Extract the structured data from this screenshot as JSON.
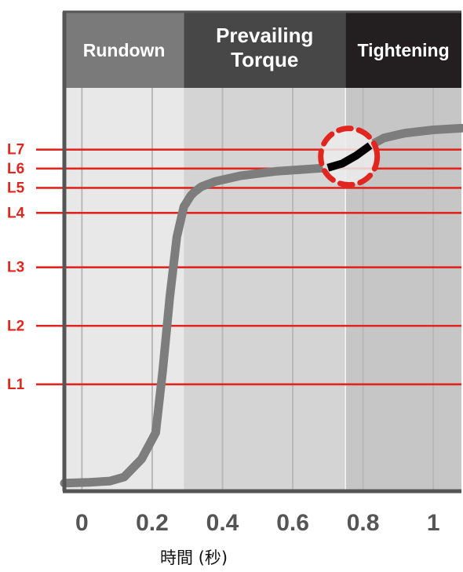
{
  "chart_data": {
    "type": "line",
    "title": "",
    "xlabel": "時間 (秒)",
    "ylabel": "",
    "xlim": [
      -0.05,
      1.08
    ],
    "ylim": [
      0,
      1
    ],
    "x_ticks": [
      {
        "value": 0,
        "label": "0"
      },
      {
        "value": 0.2,
        "label": "0.2"
      },
      {
        "value": 0.4,
        "label": "0.4"
      },
      {
        "value": 0.6,
        "label": "0.6"
      },
      {
        "value": 0.8,
        "label": "0.8"
      },
      {
        "value": 1,
        "label": "1"
      }
    ],
    "phases": [
      {
        "label": "Rundown",
        "start": -0.05,
        "end": 0.29,
        "header_color": "#7a7a7a",
        "band_color": "#e8e8e8"
      },
      {
        "label": "Prevailing Torque",
        "start": 0.29,
        "end": 0.75,
        "header_color": "#474747",
        "band_color": "#d4d4d4"
      },
      {
        "label": "Tightening",
        "start": 0.75,
        "end": 1.08,
        "header_color": "#231f20",
        "band_color": "#c6c6c6"
      }
    ],
    "levels": [
      {
        "label": "L1",
        "value": 0.265
      },
      {
        "label": "L2",
        "value": 0.41
      },
      {
        "label": "L3",
        "value": 0.555
      },
      {
        "label": "L4",
        "value": 0.69
      },
      {
        "label": "L5",
        "value": 0.752
      },
      {
        "label": "L6",
        "value": 0.8
      },
      {
        "label": "L7",
        "value": 0.847
      }
    ],
    "series": [
      {
        "color": "#7d7d7d",
        "x": [
          -0.05,
          0.02,
          0.08,
          0.12,
          0.17,
          0.21,
          0.23,
          0.25,
          0.27,
          0.29,
          0.31,
          0.32,
          0.34,
          0.38,
          0.45,
          0.55,
          0.65,
          0.7,
          0.74,
          0.78,
          0.82,
          0.86,
          0.92,
          1.0,
          1.08
        ],
        "y": [
          0.02,
          0.022,
          0.025,
          0.035,
          0.08,
          0.145,
          0.3,
          0.48,
          0.63,
          0.705,
          0.733,
          0.742,
          0.755,
          0.768,
          0.782,
          0.793,
          0.799,
          0.802,
          0.812,
          0.832,
          0.857,
          0.876,
          0.888,
          0.896,
          0.9
        ]
      }
    ],
    "highlight": {
      "color": "#000000",
      "outline_color": "#e0261f",
      "x": [
        0.7,
        0.74,
        0.78,
        0.82
      ],
      "y": [
        0.802,
        0.812,
        0.832,
        0.857
      ]
    },
    "grid": true,
    "legend": "none",
    "colors": {
      "level_line": "#e0261f",
      "axis": "#555555",
      "tick_label": "#555555"
    }
  }
}
